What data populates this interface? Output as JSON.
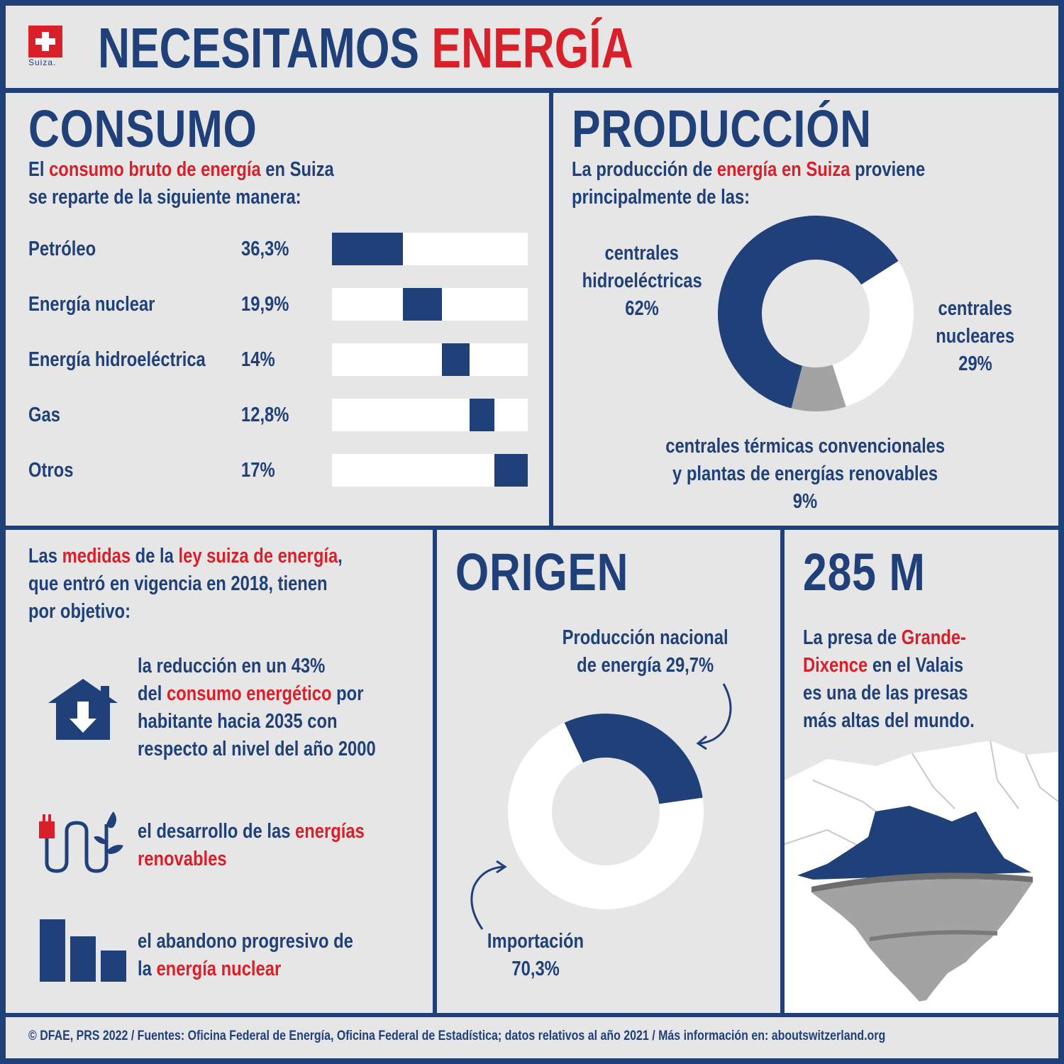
{
  "colors": {
    "navy": "#20407a",
    "red": "#d8202a",
    "background": "#e6e6e7",
    "white": "#ffffff",
    "gray": "#a3a3a3"
  },
  "header": {
    "logo_caption": "Suiza.",
    "title_part1": "NECESITAMOS ",
    "title_part2": "ENERGÍA"
  },
  "consumo": {
    "heading": "CONSUMO",
    "intro_1": "El ",
    "intro_highlight": "consumo bruto de energía",
    "intro_2": " en Suiza",
    "intro_line2": "se reparte de la siguiente manera:"
  },
  "produccion": {
    "heading": "PRODUCCIÓN",
    "intro_1": "La producción de ",
    "intro_highlight": "energía en Suiza",
    "intro_2": " proviene",
    "intro_line2": "principalmente de las:",
    "hydro_l1": "centrales",
    "hydro_l2": "hidroeléctricas",
    "hydro_value": "62%",
    "nuclear_l1": "centrales",
    "nuclear_l2": "nucleares",
    "nuclear_value": "29%",
    "thermal_l1": "centrales térmicas convencionales",
    "thermal_l2": "y plantas de energías renovables",
    "thermal_value": "9%"
  },
  "ley": {
    "intro_1": "Las ",
    "intro_h1": "medidas",
    "intro_2": " de la ",
    "intro_h2": "ley suiza de energía",
    "intro_3": ",",
    "intro_line2": "que entró en vigencia en 2018, tienen",
    "intro_line3": "por objetivo:",
    "goal1_l1": "la reducción en un 43%",
    "goal1_l2a": "del ",
    "goal1_l2h": "consumo energético",
    "goal1_l2b": " por",
    "goal1_l3": "habitante hacia 2035 con",
    "goal1_l4": "respecto al nivel del año 2000",
    "goal2_l1a": "el desarrollo de las ",
    "goal2_l1h": "energías",
    "goal2_l2h": "renovables",
    "goal3_l1": "el abandono progresivo de",
    "goal3_l2a": "la ",
    "goal3_l2h": "energía nuclear",
    "icons": [
      "house-down-arrow-icon",
      "plug-plant-icon",
      "decreasing-bars-icon"
    ]
  },
  "origen": {
    "heading": "ORIGEN",
    "national_l1": "Producción nacional",
    "national_l2": "de energía 29,7%",
    "import_l1": "Importación",
    "import_l2": "70,3%"
  },
  "presa": {
    "heading": "285 M",
    "l1a": "La presa de ",
    "l1h": "Grande-",
    "l2h": "Dixence",
    "l2b": " en el Valais",
    "l3": "es una de las presas",
    "l4": "más altas del mundo.",
    "icon": "dam-mountain-illustration"
  },
  "footer": {
    "text": "© DFAE, PRS 2022 / Fuentes: Oficina Federal de Energía, Oficina Federal de Estadística; datos relativos al año 2021 / Más información en: aboutswitzerland.org"
  },
  "chart_data": [
    {
      "type": "bar",
      "stacked_segments": true,
      "categories": [
        "Petróleo",
        "Energía nuclear",
        "Energía hidroeléctrica",
        "Gas",
        "Otros"
      ],
      "values": [
        36.3,
        19.9,
        14,
        12.8,
        17
      ],
      "value_labels": [
        "36,3%",
        "19,9%",
        "14%",
        "12,8%",
        "17%"
      ],
      "unit": "%",
      "xlim": [
        0,
        100
      ]
    },
    {
      "type": "pie",
      "donut": true,
      "categories": [
        "centrales hidroeléctricas",
        "centrales nucleares",
        "centrales térmicas convencionales y plantas de energías renovables"
      ],
      "values": [
        62,
        29,
        9
      ],
      "colors": [
        "#20407a",
        "#ffffff",
        "#a3a3a3"
      ]
    },
    {
      "type": "pie",
      "donut": true,
      "categories": [
        "Producción nacional de energía",
        "Importación"
      ],
      "values": [
        29.7,
        70.3
      ],
      "colors": [
        "#20407a",
        "#ffffff"
      ]
    }
  ]
}
